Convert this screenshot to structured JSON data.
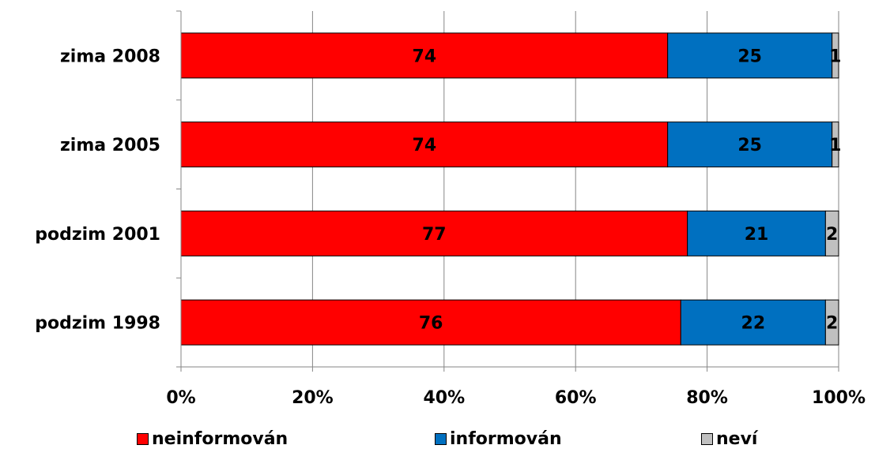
{
  "chart_data": {
    "type": "bar",
    "orientation": "horizontal",
    "stacked": "percent",
    "categories": [
      "zima 2008",
      "zima 2005",
      "podzim 2001",
      "podzim 1998"
    ],
    "series": [
      {
        "name": "neinformován",
        "color": "#ff0000",
        "values": [
          74,
          74,
          77,
          76
        ],
        "labels": [
          "74",
          "74",
          "77",
          "76"
        ]
      },
      {
        "name": "informován",
        "color": "#0070c0",
        "values": [
          25,
          25,
          21,
          22
        ],
        "labels": [
          "25",
          "25",
          "21",
          "22"
        ]
      },
      {
        "name": "neví",
        "color": "#c0c0c0",
        "values": [
          1,
          1,
          2,
          2
        ],
        "labels": [
          "1",
          "1",
          "2",
          "2"
        ]
      }
    ],
    "xlim": [
      0,
      100
    ],
    "x_ticks": [
      "0%",
      "20%",
      "40%",
      "60%",
      "80%",
      "100%"
    ],
    "grid": "vertical",
    "legend_position": "bottom"
  }
}
